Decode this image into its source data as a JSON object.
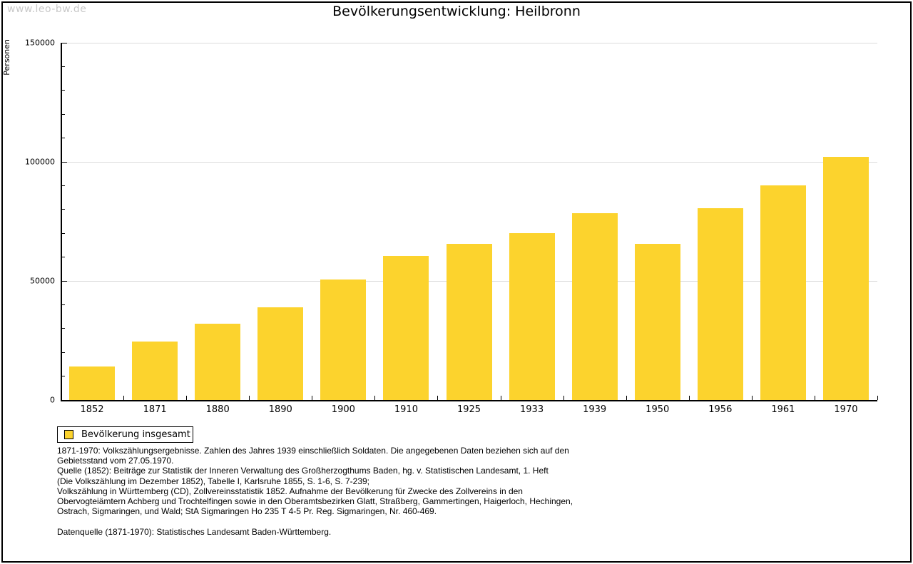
{
  "page": {
    "watermark": "www.leo-bw.de"
  },
  "chart_data": {
    "type": "bar",
    "title": "Bevölkerungsentwicklung: Heilbronn",
    "xlabel": "",
    "ylabel": "Personen",
    "categories": [
      "1852",
      "1871",
      "1880",
      "1890",
      "1900",
      "1910",
      "1925",
      "1933",
      "1939",
      "1950",
      "1956",
      "1961",
      "1970"
    ],
    "series": [
      {
        "name": "Bevölkerung insgesamt",
        "values": [
          14000,
          24500,
          32000,
          39000,
          50500,
          60500,
          65500,
          70000,
          78500,
          65500,
          80500,
          90000,
          102000
        ]
      }
    ],
    "ylim": [
      0,
      150000
    ],
    "y_major_ticks": [
      0,
      50000,
      100000,
      150000
    ],
    "y_minor_tick_interval": 10000,
    "grid": true,
    "gridlines": "horizontal-at-major-ticks",
    "legend_position": "bottom-left-below-plot",
    "bar_color": "#FCD32D",
    "grid_color": "#DCDCDC",
    "axis_color": "#000000",
    "watermark_color": "#C8C8C8"
  },
  "legend": {
    "label": "Bevölkerung insgesamt"
  },
  "footnotes": {
    "lines": [
      "1871-1970: Volkszählungsergebnisse. Zahlen des Jahres 1939 einschließlich Soldaten. Die angegebenen Daten beziehen sich auf den",
      "Gebietsstand vom 27.05.1970.",
      "Quelle (1852): Beiträge zur Statistik der Inneren Verwaltung des Großherzogthums Baden, hg. v. Statistischen Landesamt, 1. Heft",
      "(Die Volkszählung im Dezember 1852), Tabelle I, Karlsruhe 1855, S. 1-6, S. 7-239;",
      "Volkszählung in Württemberg (CD), Zollvereinsstatistik 1852. Aufnahme der Bevölkerung für Zwecke des Zollvereins in den",
      "Obervogteiämtern Achberg und Trochtelfingen sowie in den Oberamtsbezirken Glatt, Straßberg, Gammertingen, Haigerloch, Hechingen,",
      "Ostrach, Sigmaringen, und Wald; StA Sigmaringen Ho 235 T 4-5 Pr. Reg. Sigmaringen, Nr. 460-469.",
      "",
      "Datenquelle (1871-1970): Statistisches Landesamt Baden-Württemberg."
    ]
  }
}
